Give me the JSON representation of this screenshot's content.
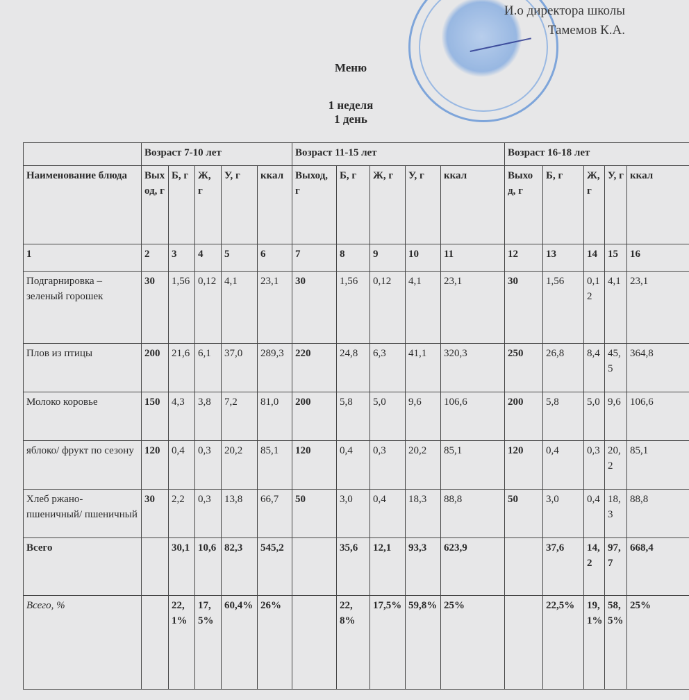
{
  "approval": {
    "line1": "И.о директора школы",
    "line2": "Тамемов К.А."
  },
  "title": "Меню",
  "week": "1 неделя",
  "day": "1 день",
  "table": {
    "age_groups": [
      "Возраст 7-10 лет",
      "Возраст 11-15 лет",
      "Возраст 16-18 лет"
    ],
    "columns": [
      "Наименование блюда",
      "Выход, г",
      "Б, г",
      "Ж, г",
      "У, г",
      "ккал",
      "Выход, г",
      "Б, г",
      "Ж, г",
      "У, г",
      "ккал",
      "Выход, г",
      "Б, г",
      "Ж, г",
      "У, г",
      "ккал"
    ],
    "column_numbers": [
      "1",
      "2",
      "3",
      "4",
      "5",
      "6",
      "7",
      "8",
      "9",
      "10",
      "11",
      "12",
      "13",
      "14",
      "15",
      "16"
    ],
    "rows": [
      [
        "Подгарнировка – зеленый горошек",
        "30",
        "1,56",
        "0,12",
        "4,1",
        "23,1",
        "30",
        "1,56",
        "0,12",
        "4,1",
        "23,1",
        "30",
        "1,56",
        "0,12",
        "4,1",
        "23,1"
      ],
      [
        "Плов из птицы",
        "200",
        "21,6",
        "6,1",
        "37,0",
        "289,3",
        "220",
        "24,8",
        "6,3",
        "41,1",
        "320,3",
        "250",
        "26,8",
        "8,4",
        "45,5",
        "364,8"
      ],
      [
        "Молоко коровье",
        "150",
        "4,3",
        "3,8",
        "7,2",
        "81,0",
        "200",
        "5,8",
        "5,0",
        "9,6",
        "106,6",
        "200",
        "5,8",
        "5,0",
        "9,6",
        "106,6"
      ],
      [
        "яблоко/ фрукт по сезону",
        "120",
        "0,4",
        "0,3",
        "20,2",
        "85,1",
        "120",
        "0,4",
        "0,3",
        "20,2",
        "85,1",
        "120",
        "0,4",
        "0,3",
        "20,2",
        "85,1"
      ],
      [
        "Хлеб ржано-пшеничный/ пшеничный",
        "30",
        "2,2",
        "0,3",
        "13,8",
        "66,7",
        "50",
        "3,0",
        "0,4",
        "18,3",
        "88,8",
        "50",
        "3,0",
        "0,4",
        "18,3",
        "88,8"
      ]
    ],
    "total": [
      "Всего",
      "",
      "30,1",
      "10,6",
      "82,3",
      "545,2",
      "",
      "35,6",
      "12,1",
      "93,3",
      "623,9",
      "",
      "37,6",
      "14,2",
      "97,7",
      "668,4"
    ],
    "total_percent": [
      "Всего, %",
      "",
      "22,1%",
      "17,5%",
      "60,4%",
      "26%",
      "",
      "22,8%",
      "17,5%",
      "59,8%",
      "25%",
      "",
      "22,5%",
      "19,1%",
      "58,5%",
      "25%"
    ]
  }
}
